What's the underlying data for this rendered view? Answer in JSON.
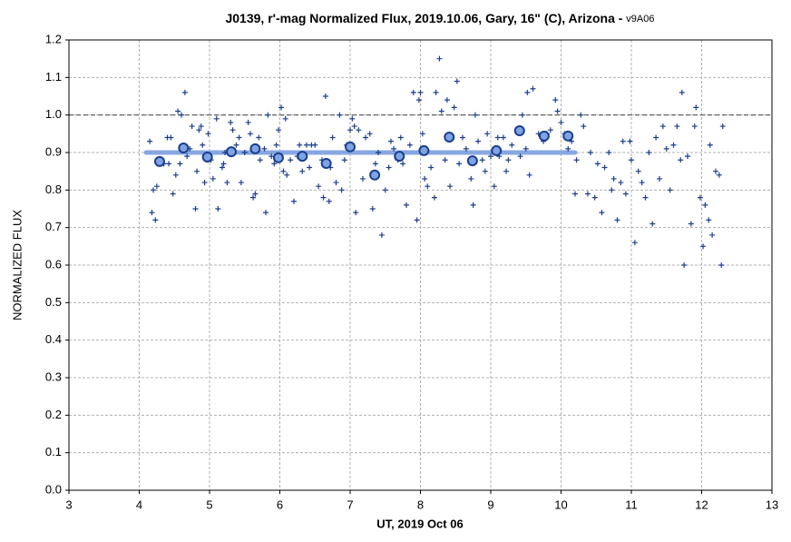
{
  "chart_data": {
    "type": "scatter",
    "title": "J0139, r'-mag Normalized Flux, 2019.10.06, Gary, 16\" (C), Arizona - ",
    "version": "v9A06",
    "x_label": "UT, 2019 Oct 06",
    "y_label": "NORMALIZED FLUX",
    "xlim": [
      3,
      13
    ],
    "xticks": [
      3,
      4,
      5,
      6,
      7,
      8,
      9,
      10,
      11,
      12,
      13
    ],
    "ylim": [
      0,
      1.2
    ],
    "yticks": [
      {
        "value": 0,
        "label": "0.0"
      },
      0.1,
      0.2,
      0.3,
      0.4,
      0.5,
      0.6,
      0.7,
      0.8,
      0.9,
      {
        "value": 1,
        "label": "1.0"
      },
      1.1,
      1.2
    ],
    "grid": true,
    "reference_line": {
      "value": 1.0,
      "color": "#555555"
    },
    "series": [
      {
        "marker": "line",
        "color": "#87a6e2",
        "x": [
          4.1,
          10.2
        ],
        "values": [
          0.9,
          0.9
        ]
      },
      {
        "marker": "plus",
        "color": "#1b3f8c",
        "x": [
          4.15,
          4.18,
          4.2,
          4.23,
          4.25,
          4.3,
          4.35,
          4.4,
          4.42,
          4.45,
          4.48,
          4.52,
          4.55,
          4.58,
          4.6,
          4.65,
          4.68,
          4.72,
          4.75,
          4.8,
          4.82,
          4.85,
          4.88,
          4.9,
          4.93,
          4.98,
          5.02,
          5.05,
          5.1,
          5.12,
          5.18,
          5.2,
          5.22,
          5.25,
          5.3,
          5.33,
          5.38,
          5.42,
          5.45,
          5.5,
          5.55,
          5.58,
          5.62,
          5.65,
          5.7,
          5.72,
          5.78,
          5.8,
          5.83,
          5.88,
          5.92,
          5.95,
          5.98,
          6.02,
          6.05,
          6.08,
          6.1,
          6.15,
          6.2,
          6.25,
          6.28,
          6.32,
          6.38,
          6.42,
          6.45,
          6.5,
          6.55,
          6.6,
          6.62,
          6.65,
          6.7,
          6.72,
          6.75,
          6.8,
          6.85,
          6.88,
          6.92,
          6.95,
          7.0,
          7.03,
          7.06,
          7.08,
          7.12,
          7.18,
          7.22,
          7.28,
          7.32,
          7.36,
          7.4,
          7.45,
          7.5,
          7.55,
          7.58,
          7.62,
          7.68,
          7.72,
          7.75,
          7.8,
          7.85,
          7.9,
          7.95,
          7.98,
          8.0,
          8.03,
          8.06,
          8.1,
          8.15,
          8.2,
          8.22,
          8.27,
          8.3,
          8.35,
          8.38,
          8.42,
          8.48,
          8.52,
          8.55,
          8.6,
          8.65,
          8.72,
          8.75,
          8.78,
          8.82,
          8.88,
          8.92,
          8.95,
          9.0,
          9.05,
          9.1,
          9.12,
          9.18,
          9.22,
          9.25,
          9.3,
          9.38,
          9.42,
          9.45,
          9.5,
          9.52,
          9.55,
          9.6,
          9.68,
          9.75,
          9.8,
          9.85,
          9.92,
          9.95,
          10.0,
          10.05,
          10.1,
          10.15,
          10.2,
          10.22,
          10.28,
          10.32,
          10.38,
          10.42,
          10.48,
          10.52,
          10.58,
          10.62,
          10.68,
          10.72,
          10.75,
          10.8,
          10.85,
          10.88,
          10.92,
          10.98,
          11.0,
          11.05,
          11.1,
          11.15,
          11.2,
          11.25,
          11.3,
          11.35,
          11.4,
          11.45,
          11.5,
          11.55,
          11.6,
          11.65,
          11.7,
          11.72,
          11.75,
          11.8,
          11.85,
          11.9,
          11.92,
          11.98,
          12.02,
          12.05,
          12.1,
          12.12,
          12.15,
          12.2,
          12.25,
          12.28,
          12.3
        ],
        "values": [
          0.93,
          0.74,
          0.8,
          0.72,
          0.81,
          0.88,
          0.87,
          0.94,
          0.87,
          0.94,
          0.79,
          0.84,
          1.01,
          0.87,
          1.0,
          1.06,
          0.89,
          0.91,
          0.97,
          0.75,
          0.85,
          0.96,
          0.97,
          0.92,
          0.82,
          0.95,
          0.88,
          0.83,
          0.99,
          0.75,
          0.86,
          0.87,
          0.9,
          0.82,
          0.98,
          0.96,
          0.92,
          0.94,
          0.82,
          0.9,
          0.98,
          0.95,
          0.78,
          0.79,
          0.94,
          0.88,
          0.91,
          0.74,
          1.0,
          0.89,
          0.87,
          0.92,
          0.96,
          1.02,
          0.85,
          0.99,
          0.84,
          0.88,
          0.77,
          0.89,
          0.92,
          0.85,
          0.92,
          0.86,
          0.92,
          0.92,
          0.81,
          0.88,
          0.78,
          1.05,
          0.77,
          0.86,
          0.94,
          0.82,
          1.0,
          0.8,
          0.88,
          0.92,
          0.96,
          0.99,
          0.97,
          0.74,
          0.96,
          0.83,
          0.94,
          0.95,
          0.75,
          0.87,
          0.9,
          0.68,
          0.8,
          0.86,
          0.93,
          0.91,
          0.88,
          0.94,
          0.87,
          0.76,
          0.92,
          1.06,
          0.72,
          1.04,
          1.06,
          0.95,
          0.83,
          0.81,
          0.86,
          0.78,
          1.06,
          1.15,
          1.01,
          0.88,
          1.04,
          0.81,
          1.02,
          1.09,
          0.87,
          0.94,
          0.91,
          0.83,
          0.76,
          1.0,
          0.93,
          0.88,
          0.85,
          0.95,
          0.89,
          0.81,
          0.94,
          0.89,
          0.94,
          0.85,
          0.88,
          0.92,
          0.96,
          0.89,
          1.0,
          0.91,
          1.06,
          0.84,
          1.07,
          0.95,
          0.93,
          0.95,
          0.96,
          1.04,
          1.01,
          0.98,
          0.95,
          0.91,
          0.93,
          0.79,
          0.88,
          1.0,
          0.97,
          0.79,
          0.9,
          0.78,
          0.87,
          0.74,
          0.86,
          0.9,
          0.8,
          0.83,
          0.72,
          0.82,
          0.93,
          0.79,
          0.93,
          0.88,
          0.66,
          0.85,
          0.82,
          0.78,
          0.9,
          0.71,
          0.94,
          0.83,
          0.97,
          0.91,
          0.8,
          0.92,
          0.97,
          0.88,
          1.06,
          0.6,
          0.89,
          0.71,
          0.97,
          1.02,
          0.78,
          0.65,
          0.76,
          0.72,
          0.92,
          0.68,
          0.85,
          0.84,
          0.6,
          0.97
        ]
      },
      {
        "marker": "circle",
        "color": "#1b3f8c",
        "x": [
          4.29,
          4.63,
          4.97,
          5.31,
          5.65,
          5.98,
          6.32,
          6.66,
          7.0,
          7.35,
          7.7,
          8.05,
          8.41,
          8.74,
          9.08,
          9.41,
          9.76,
          10.1
        ],
        "values": [
          0.876,
          0.912,
          0.888,
          0.902,
          0.91,
          0.886,
          0.89,
          0.871,
          0.915,
          0.84,
          0.89,
          0.905,
          0.941,
          0.878,
          0.905,
          0.958,
          0.944,
          0.944
        ]
      }
    ]
  }
}
